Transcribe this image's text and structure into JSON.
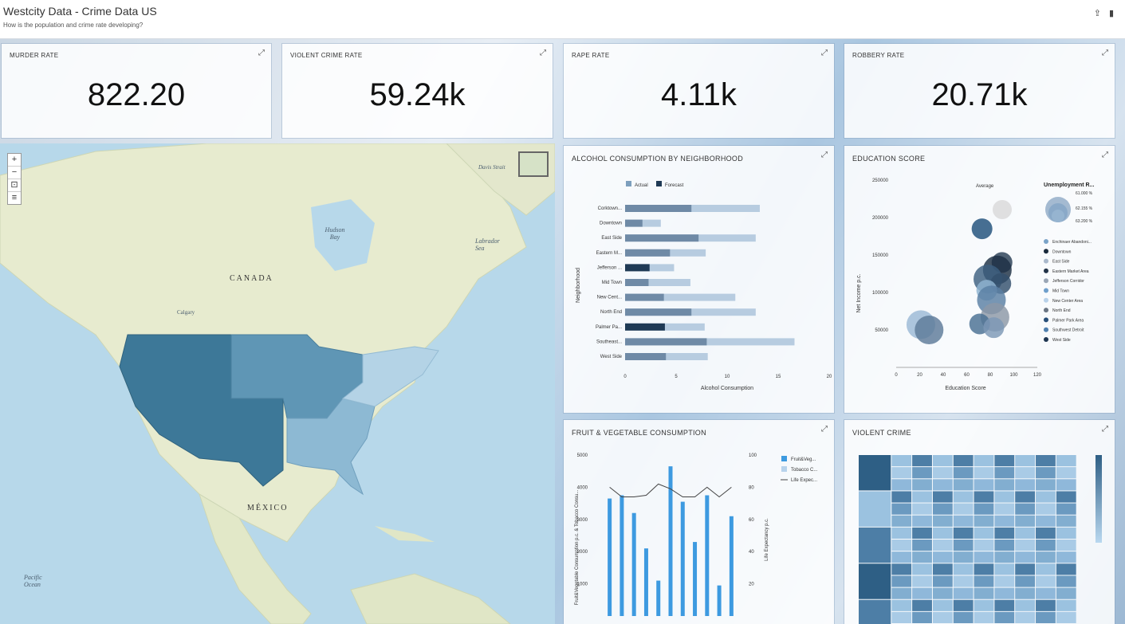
{
  "header": {
    "title": "Westcity Data - Crime Data US",
    "subtitle": "How is the population and crime rate developing?"
  },
  "kpis": [
    {
      "label": "MURDER RATE",
      "value": "822.20"
    },
    {
      "label": "VIOLENT CRIME RATE",
      "value": "59.24k"
    },
    {
      "label": "RAPE RATE",
      "value": "4.11k"
    },
    {
      "label": "ROBBERY RATE",
      "value": "20.71k"
    }
  ],
  "map": {
    "labels": {
      "canada": "CANADA",
      "mexico": "MÉXICO",
      "hudson": "Hudson Bay",
      "labrador": "Labrador Sea",
      "pacific": "Pacific Ocean",
      "calgary": "Calgary",
      "davis": "Davis Strait"
    },
    "state_colors": {
      "west": "#3d7898",
      "central": "#5f96b5",
      "southeast": "#8db9d3",
      "northeast": "#b4d3e6"
    }
  },
  "alcohol_chart": {
    "title": "ALCOHOL CONSUMPTION BY NEIGHBORHOOD",
    "legend": [
      "Actual",
      "Forecast"
    ],
    "xlabel": "Alcohol Consumption",
    "ylabel": "Neighborhood",
    "xticks": [
      "0",
      "5",
      "10",
      "15",
      "20"
    ]
  },
  "education_chart": {
    "title": "EDUCATION SCORE",
    "xlabel": "Education Score",
    "ylabel": "Net Income p.c.",
    "yticks": [
      "250000",
      "200000",
      "150000",
      "100000",
      "50000"
    ],
    "xticks": [
      "0",
      "20",
      "40",
      "60",
      "80",
      "100",
      "120"
    ],
    "size_legend_title": "Unemployment R...",
    "size_legend_values": [
      "61.000 %",
      "62.155 %",
      "63.200 %"
    ],
    "average_label": "Average",
    "legend": [
      "Enchinaer Abandoni...",
      "Downtown",
      "East Side",
      "Eastern Market Area",
      "Jefferson Corridor",
      "Mid Town",
      "New Center Area",
      "North End",
      "Palmer Park Area",
      "Southwest Detroit",
      "West Side"
    ]
  },
  "fruit_chart": {
    "title": "FRUIT & VEGETABLE CONSUMPTION",
    "yticks_left": [
      "5000",
      "4000",
      "3000",
      "2000",
      "1000"
    ],
    "yticks_right": [
      "100",
      "80",
      "60",
      "40",
      "20"
    ],
    "ylabel_left": "Fruit&Vegetable Consumption p.c. & Tobacco Consu...",
    "ylabel_right": "Life Expectancy p.c.",
    "legend": [
      "Fruit&Veg...",
      "Tobacco C...",
      "Life Expec..."
    ]
  },
  "violent_crime": {
    "title": "VIOLENT CRIME"
  },
  "chart_data": [
    {
      "type": "bar",
      "title": "ALCOHOL CONSUMPTION BY NEIGHBORHOOD",
      "categories": [
        "Corktown...",
        "Downtown",
        "East Side",
        "Eastern M...",
        "Jefferson ...",
        "Mid Town",
        "New Cent...",
        "North End",
        "Palmer Pa...",
        "Southeast...",
        "West Side"
      ],
      "series": [
        {
          "name": "Actual",
          "values": [
            6.5,
            1.7,
            7.2,
            4.4,
            2.4,
            2.3,
            3.8,
            6.5,
            3.9,
            8.0,
            4.0
          ]
        },
        {
          "name": "Forecast",
          "values": [
            13.2,
            3.5,
            12.8,
            7.9,
            4.8,
            6.4,
            10.8,
            12.8,
            7.8,
            16.6,
            8.1
          ]
        }
      ],
      "xlabel": "Alcohol Consumption",
      "ylabel": "Neighborhood",
      "xlim": [
        0,
        20
      ]
    },
    {
      "type": "scatter",
      "title": "EDUCATION SCORE",
      "xlabel": "Education Score",
      "ylabel": "Net Income p.c.",
      "xlim": [
        0,
        120
      ],
      "ylim": [
        0,
        250000
      ],
      "points": [
        {
          "x": 73,
          "y": 185000,
          "size": 2
        },
        {
          "x": 90,
          "y": 140000,
          "size": 2
        },
        {
          "x": 86,
          "y": 130000,
          "size": 3
        },
        {
          "x": 78,
          "y": 118000,
          "size": 3
        },
        {
          "x": 89,
          "y": 112000,
          "size": 2
        },
        {
          "x": 77,
          "y": 103000,
          "size": 2
        },
        {
          "x": 81,
          "y": 90000,
          "size": 3
        },
        {
          "x": 84,
          "y": 67000,
          "size": 3
        },
        {
          "x": 71,
          "y": 58000,
          "size": 2
        },
        {
          "x": 83,
          "y": 53000,
          "size": 2
        },
        {
          "x": 21,
          "y": 57000,
          "size": 3
        },
        {
          "x": 28,
          "y": 50000,
          "size": 3
        }
      ]
    },
    {
      "type": "bar",
      "title": "FRUIT & VEGETABLE CONSUMPTION",
      "series": [
        {
          "name": "Fruit&Veg...",
          "values": [
            3650,
            3750,
            3200,
            2100,
            1100,
            4650,
            3550,
            2300,
            3750,
            950,
            3100
          ]
        },
        {
          "name": "Life Expec...",
          "values": [
            80,
            74,
            74,
            75,
            82,
            79,
            74,
            74,
            80,
            74,
            80
          ]
        }
      ],
      "ylim": [
        0,
        5000
      ],
      "y2lim": [
        0,
        100
      ]
    }
  ]
}
